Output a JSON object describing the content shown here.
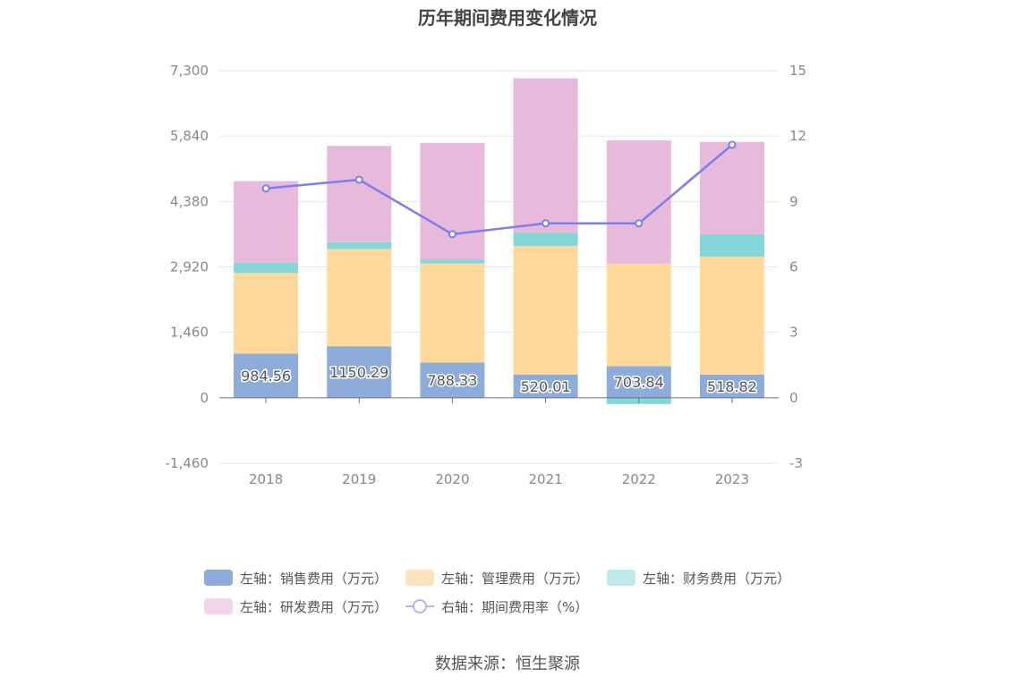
{
  "chart_data": {
    "type": "bar",
    "title": "历年期间费用变化情况",
    "categories": [
      "2018",
      "2019",
      "2020",
      "2021",
      "2022",
      "2023"
    ],
    "stacked": true,
    "series": [
      {
        "name": "左轴：销售费用（万元）",
        "axis": "left",
        "type": "bar",
        "color": "#8eacd9",
        "values": [
          984.56,
          1150.29,
          788.33,
          520.01,
          703.84,
          518.82
        ],
        "labels": [
          "984.56",
          "1150.29",
          "788.33",
          "520.01",
          "703.84",
          "518.82"
        ]
      },
      {
        "name": "左轴：管理费用（万元）",
        "axis": "left",
        "type": "bar",
        "color": "#fed99b",
        "values": [
          1800,
          2170,
          2210,
          2870,
          2290,
          2630
        ]
      },
      {
        "name": "左轴：财务费用（万元）",
        "axis": "left",
        "type": "bar",
        "color": "#84d6d9",
        "values": [
          230,
          150,
          90,
          290,
          -140,
          500
        ]
      },
      {
        "name": "左轴：研发费用（万元）",
        "axis": "left",
        "type": "bar",
        "color": "#e7b9db",
        "values": [
          1820,
          2150,
          2600,
          3450,
          2750,
          2060
        ]
      },
      {
        "name": "右轴：期间费用率（%）",
        "axis": "right",
        "type": "line",
        "color": "#7a7ef0",
        "values": [
          9.6,
          10.0,
          7.5,
          8.0,
          8.0,
          11.6
        ]
      }
    ],
    "left_axis": {
      "ticks": [
        "-1,460",
        "0",
        "1,460",
        "2,920",
        "4,380",
        "5,840",
        "7,300"
      ],
      "tick_values": [
        -1460,
        0,
        1460,
        2920,
        4380,
        5840,
        7300
      ],
      "ylim": [
        -1460,
        7300
      ]
    },
    "right_axis": {
      "ticks": [
        "-3",
        "0",
        "3",
        "6",
        "9",
        "12",
        "15"
      ],
      "tick_values": [
        -3,
        0,
        3,
        6,
        9,
        12,
        15
      ],
      "ylim": [
        -3,
        15
      ]
    },
    "grid": true,
    "legend_position": "bottom"
  },
  "legend": {
    "items": [
      {
        "label": "左轴：销售费用（万元）",
        "color": "#8eacd9",
        "kind": "bar"
      },
      {
        "label": "左轴：管理费用（万元）",
        "color": "#fde3bd",
        "kind": "bar"
      },
      {
        "label": "左轴：财务费用（万元）",
        "color": "#bfe8ea",
        "kind": "bar"
      },
      {
        "label": "左轴：研发费用（万元）",
        "color": "#f1d5ea",
        "kind": "bar"
      },
      {
        "label": "右轴：期间费用率（%）",
        "color": "#b0b3f5",
        "kind": "line"
      }
    ]
  },
  "source": "数据来源：恒生聚源"
}
